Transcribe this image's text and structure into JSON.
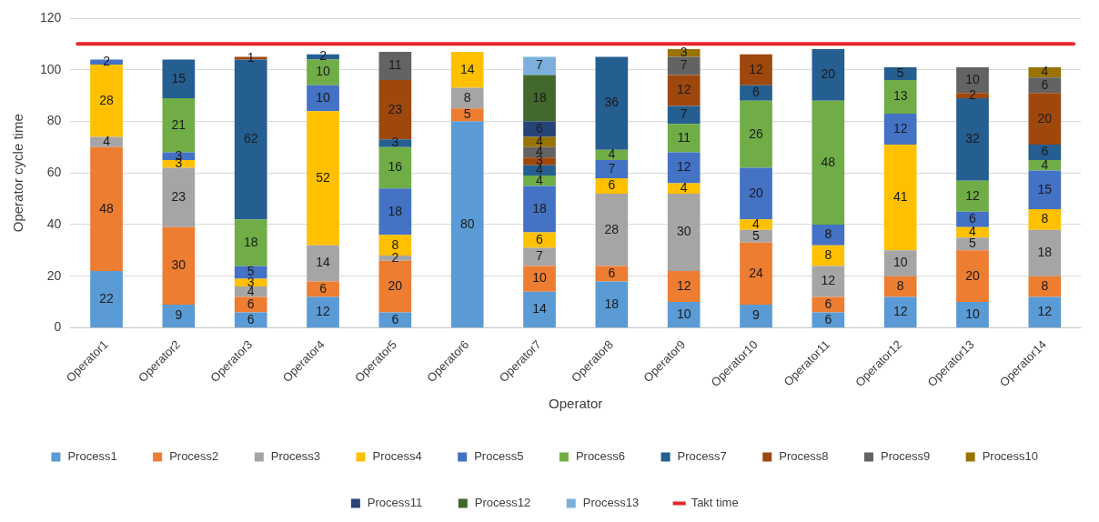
{
  "chart_data": {
    "type": "bar",
    "stacked": true,
    "xlabel": "Operator",
    "ylabel": "Operator cycle time",
    "categories": [
      "Operator1",
      "Operator2",
      "Operator3",
      "Operator4",
      "Operator5",
      "Operator6",
      "Operator7",
      "Operator8",
      "Operator9",
      "Operator10",
      "Operator11",
      "Operator12",
      "Operator13",
      "Operator14"
    ],
    "ylim": [
      0,
      120
    ],
    "yticks": [
      0,
      20,
      40,
      60,
      80,
      100,
      120
    ],
    "grid": "y",
    "legend": "bottom",
    "data_labels": true,
    "series": [
      {
        "name": "Process1",
        "color": "#5b9bd5",
        "values": [
          22,
          9,
          6,
          12,
          6,
          80,
          14,
          18,
          10,
          9,
          6,
          12,
          10,
          12
        ]
      },
      {
        "name": "Process2",
        "color": "#ed7d31",
        "values": [
          48,
          30,
          6,
          6,
          20,
          5,
          10,
          6,
          12,
          24,
          6,
          8,
          20,
          8
        ]
      },
      {
        "name": "Process3",
        "color": "#a5a5a5",
        "values": [
          4,
          23,
          4,
          14,
          2,
          8,
          7,
          28,
          30,
          5,
          12,
          10,
          5,
          18
        ]
      },
      {
        "name": "Process4",
        "color": "#ffc000",
        "values": [
          28,
          3,
          3,
          52,
          8,
          14,
          6,
          6,
          4,
          4,
          8,
          41,
          4,
          8
        ]
      },
      {
        "name": "Process5",
        "color": "#4472c4",
        "values": [
          2,
          3,
          5,
          10,
          18,
          null,
          18,
          7,
          12,
          20,
          8,
          12,
          6,
          15
        ]
      },
      {
        "name": "Process6",
        "color": "#70ad47",
        "values": [
          null,
          21,
          18,
          10,
          16,
          null,
          4,
          4,
          11,
          26,
          48,
          13,
          12,
          4
        ]
      },
      {
        "name": "Process7",
        "color": "#255e91",
        "values": [
          null,
          15,
          62,
          2,
          3,
          null,
          4,
          36,
          7,
          6,
          20,
          5,
          32,
          6
        ]
      },
      {
        "name": "Process8",
        "color": "#9e480e",
        "values": [
          null,
          null,
          1,
          null,
          23,
          null,
          3,
          null,
          12,
          12,
          null,
          null,
          2,
          20
        ]
      },
      {
        "name": "Process9",
        "color": "#636363",
        "values": [
          null,
          null,
          null,
          null,
          11,
          null,
          4,
          null,
          7,
          null,
          null,
          null,
          10,
          6
        ]
      },
      {
        "name": "Process10",
        "color": "#997300",
        "values": [
          null,
          null,
          null,
          null,
          null,
          null,
          4,
          null,
          3,
          null,
          null,
          null,
          null,
          4
        ]
      },
      {
        "name": "Process11",
        "color": "#264478",
        "values": [
          null,
          null,
          null,
          null,
          null,
          null,
          6,
          null,
          null,
          null,
          null,
          null,
          null,
          null
        ]
      },
      {
        "name": "Process12",
        "color": "#43682b",
        "values": [
          null,
          null,
          null,
          null,
          null,
          null,
          18,
          null,
          null,
          null,
          null,
          null,
          null,
          null
        ]
      },
      {
        "name": "Process13",
        "color": "#7cafdd",
        "values": [
          null,
          null,
          null,
          null,
          null,
          null,
          7,
          null,
          null,
          null,
          null,
          null,
          null,
          null
        ]
      }
    ],
    "ref_lines": [
      {
        "axis": "y",
        "value": 110,
        "label": "Takt time",
        "color": "#e8262a"
      }
    ]
  }
}
